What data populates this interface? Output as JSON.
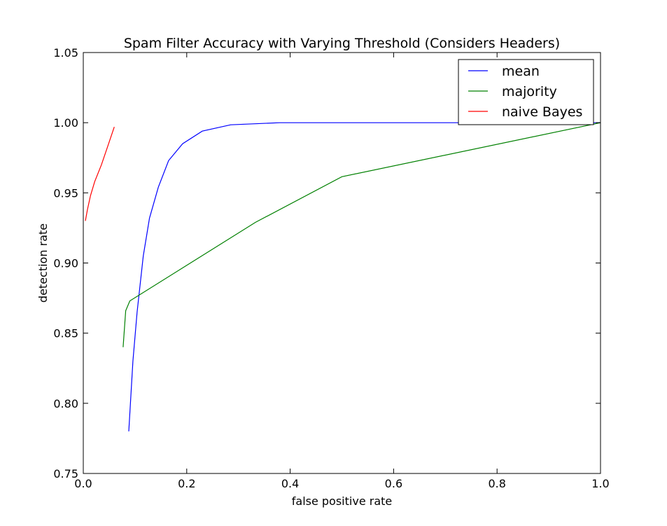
{
  "chart_data": {
    "type": "line",
    "title": "Spam Filter Accuracy with Varying Threshold (Considers Headers)",
    "xlabel": "false positive rate",
    "ylabel": "detection rate",
    "xlim": [
      0.0,
      1.0
    ],
    "ylim": [
      0.75,
      1.05
    ],
    "x_ticks": [
      "0.0",
      "0.2",
      "0.4",
      "0.6",
      "0.8",
      "1.0"
    ],
    "y_ticks": [
      "0.75",
      "0.80",
      "0.85",
      "0.90",
      "0.95",
      "1.00",
      "1.05"
    ],
    "grid": false,
    "legend_position": "top-right",
    "series": [
      {
        "name": "mean",
        "color": "#0000ff",
        "x": [
          0.088,
          0.096,
          0.104,
          0.116,
          0.128,
          0.145,
          0.165,
          0.192,
          0.23,
          0.285,
          0.38,
          0.5,
          0.7,
          0.9,
          1.0
        ],
        "y": [
          0.78,
          0.83,
          0.865,
          0.905,
          0.932,
          0.954,
          0.973,
          0.985,
          0.994,
          0.9985,
          1.0,
          1.0,
          1.0,
          1.0,
          1.0
        ]
      },
      {
        "name": "majority",
        "color": "#008000",
        "x": [
          0.077,
          0.082,
          0.09,
          0.333,
          0.5,
          1.0
        ],
        "y": [
          0.84,
          0.866,
          0.873,
          0.929,
          0.9615,
          1.0
        ]
      },
      {
        "name": "naive Bayes",
        "color": "#ff0000",
        "x": [
          0.004,
          0.008,
          0.014,
          0.022,
          0.035,
          0.048,
          0.06
        ],
        "y": [
          0.93,
          0.938,
          0.948,
          0.958,
          0.97,
          0.984,
          0.997
        ]
      }
    ]
  }
}
